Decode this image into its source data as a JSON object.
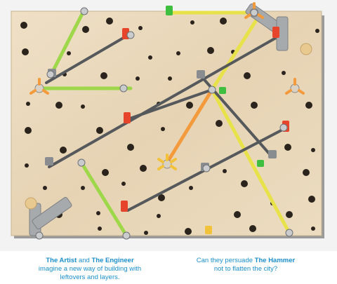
{
  "colors": {
    "background": "#ffffff",
    "board": "#ead9bd",
    "board_edge": "#8c8c8c",
    "caption": "#1b8fc9",
    "rod_gray": "#56595c",
    "rod_yellow": "#e8e24a",
    "rod_green": "#9ed84a",
    "rod_orange": "#f39a3c",
    "connector_red": "#e6452b",
    "connector_green": "#3fbf3f",
    "connector_yellow": "#f2c23a",
    "bracket_gray": "#a7aaad"
  },
  "scene": {
    "subject": "wooden-pegboard-with-colored-rods-and-connectors"
  },
  "captions": {
    "left": {
      "artist": "The Artist",
      "and": " and ",
      "engineer": "The Engineer",
      "line2": "imagine a new way of building with",
      "line3": "leftovers and layers."
    },
    "right": {
      "line1_pre": "Can they persuade ",
      "hammer": "The Hammer",
      "line2": "not to flatten the city?"
    }
  }
}
